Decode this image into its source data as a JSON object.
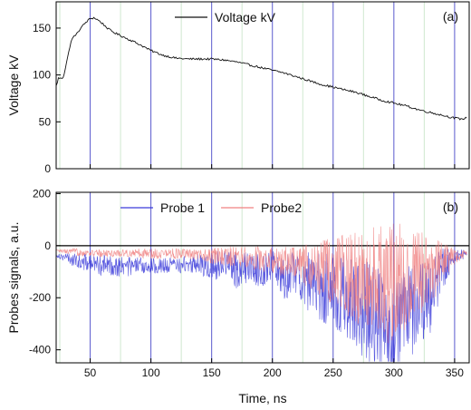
{
  "chart_data": [
    {
      "type": "line",
      "panel_label": "(a)",
      "xlabel": "",
      "ylabel": "Voltage kV",
      "xlim": [
        22,
        362
      ],
      "ylim": [
        0,
        178
      ],
      "xticks": [
        50,
        100,
        150,
        200,
        250,
        300,
        350
      ],
      "yticks": [
        0,
        50,
        100,
        150
      ],
      "grid": true,
      "legend": "top-center",
      "series": [
        {
          "name": "Voltage kV",
          "color": "#111111",
          "x": [
            22,
            24,
            26,
            28,
            30,
            32,
            34,
            36,
            38,
            40,
            42,
            45,
            48,
            50,
            53,
            56,
            60,
            65,
            70,
            75,
            80,
            90,
            100,
            110,
            120,
            130,
            140,
            150,
            160,
            170,
            180,
            190,
            200,
            210,
            220,
            230,
            240,
            250,
            260,
            270,
            280,
            290,
            300,
            310,
            320,
            330,
            340,
            350,
            355,
            360
          ],
          "values": [
            88,
            97,
            96,
            98,
            110,
            122,
            135,
            140,
            143,
            145,
            150,
            154,
            158,
            160,
            161,
            159,
            155,
            149,
            145,
            142,
            139,
            133,
            126,
            121,
            118,
            117,
            117,
            117,
            116,
            114,
            111,
            108,
            105,
            102,
            98,
            94,
            90,
            87,
            84,
            81,
            77,
            73,
            70,
            67,
            63,
            60,
            57,
            54,
            53,
            54
          ]
        }
      ]
    },
    {
      "type": "line",
      "panel_label": "(b)",
      "xlabel": "Time, ns",
      "ylabel": "Probes signals, a.u.",
      "xlim": [
        22,
        362
      ],
      "ylim": [
        -450,
        205
      ],
      "xticks": [
        50,
        100,
        150,
        200,
        250,
        300,
        350
      ],
      "yticks": [
        -400,
        -200,
        0,
        200
      ],
      "zero_line": true,
      "grid": true,
      "legend": "top-center",
      "series": [
        {
          "name": "Probe 1",
          "color": "#3b3bd9",
          "x": [
            22,
            40,
            60,
            80,
            100,
            120,
            140,
            150,
            160,
            170,
            180,
            190,
            200,
            210,
            220,
            230,
            240,
            250,
            260,
            270,
            280,
            290,
            295,
            300,
            305,
            310,
            320,
            330,
            340,
            350,
            360
          ],
          "values": [
            -35,
            -60,
            -75,
            -80,
            -78,
            -75,
            -70,
            -85,
            -60,
            -95,
            -80,
            -95,
            -70,
            -120,
            -100,
            -140,
            -160,
            -180,
            -200,
            -230,
            -260,
            -280,
            -320,
            -340,
            -300,
            -260,
            -240,
            -200,
            -90,
            -40,
            -30
          ],
          "spread": [
            8,
            30,
            40,
            40,
            30,
            30,
            40,
            60,
            50,
            70,
            60,
            70,
            60,
            90,
            80,
            120,
            130,
            150,
            160,
            180,
            200,
            200,
            190,
            200,
            190,
            180,
            170,
            150,
            80,
            30,
            15
          ]
        },
        {
          "name": "Probe2",
          "color": "#f08080",
          "x": [
            22,
            40,
            60,
            80,
            100,
            120,
            140,
            150,
            160,
            170,
            180,
            190,
            200,
            210,
            220,
            230,
            240,
            250,
            260,
            270,
            280,
            290,
            295,
            300,
            305,
            310,
            320,
            330,
            340,
            350,
            360
          ],
          "values": [
            -20,
            -25,
            -30,
            -28,
            -30,
            -30,
            -35,
            -40,
            -45,
            -40,
            -45,
            -50,
            -55,
            -60,
            -70,
            -80,
            -90,
            -100,
            -110,
            -120,
            -130,
            -140,
            -140,
            -150,
            -130,
            -120,
            -110,
            -100,
            -60,
            -40,
            -30
          ],
          "spread": [
            5,
            15,
            15,
            15,
            20,
            20,
            20,
            30,
            40,
            40,
            40,
            50,
            50,
            60,
            70,
            90,
            110,
            130,
            160,
            180,
            200,
            230,
            240,
            240,
            220,
            200,
            170,
            140,
            80,
            30,
            15
          ]
        }
      ]
    }
  ]
}
